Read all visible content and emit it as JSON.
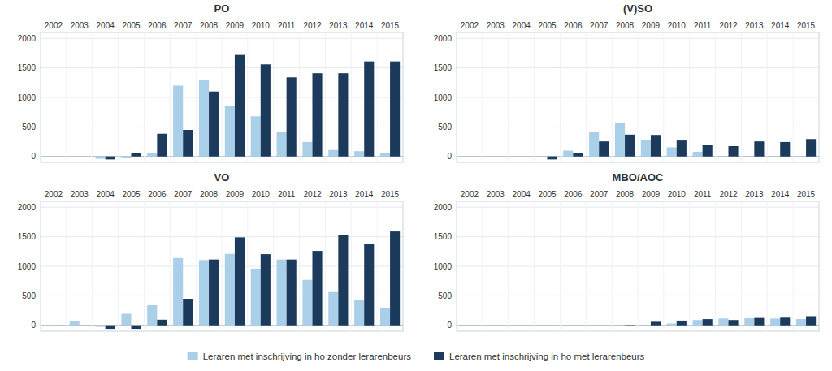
{
  "chart_data": [
    {
      "type": "bar",
      "title": "PO",
      "categories": [
        2002,
        2003,
        2004,
        2005,
        2006,
        2007,
        2008,
        2009,
        2010,
        2011,
        2012,
        2013,
        2014,
        2015
      ],
      "series": [
        {
          "name": "Leraren met inschrijving in ho zonder lerarenbeurs",
          "color": "#aacfe8",
          "values": [
            0,
            0,
            -40,
            -30,
            55,
            1200,
            1300,
            850,
            680,
            420,
            245,
            110,
            90,
            65
          ]
        },
        {
          "name": "Leraren met inschrijving in ho met lerarenbeurs",
          "color": "#1b3a5c",
          "values": [
            0,
            0,
            -50,
            65,
            385,
            450,
            1100,
            1720,
            1560,
            1340,
            1410,
            1410,
            1610,
            1610
          ]
        }
      ],
      "ylim": [
        -100,
        2100
      ],
      "yticks": [
        0,
        500,
        1000,
        1500,
        2000
      ],
      "grid": true,
      "legend": "bottom"
    },
    {
      "type": "bar",
      "title": "(V)SO",
      "categories": [
        2002,
        2003,
        2004,
        2005,
        2006,
        2007,
        2008,
        2009,
        2010,
        2011,
        2012,
        2013,
        2014,
        2015
      ],
      "series": [
        {
          "name": "Leraren met inschrijving in ho zonder lerarenbeurs",
          "color": "#aacfe8",
          "values": [
            0,
            0,
            0,
            0,
            100,
            420,
            560,
            280,
            155,
            80,
            0,
            0,
            0,
            0
          ]
        },
        {
          "name": "Leraren met inschrijving in ho met lerarenbeurs",
          "color": "#1b3a5c",
          "values": [
            0,
            0,
            0,
            -50,
            65,
            255,
            370,
            365,
            270,
            195,
            175,
            255,
            245,
            295
          ]
        }
      ],
      "ylim": [
        -100,
        2100
      ],
      "yticks": [
        0,
        500,
        1000,
        1500,
        2000
      ],
      "grid": true,
      "legend": "bottom"
    },
    {
      "type": "bar",
      "title": "VO",
      "categories": [
        2002,
        2003,
        2004,
        2005,
        2006,
        2007,
        2008,
        2009,
        2010,
        2011,
        2012,
        2013,
        2014,
        2015
      ],
      "series": [
        {
          "name": "Leraren met inschrijving in ho zonder lerarenbeurs",
          "color": "#aacfe8",
          "values": [
            -15,
            70,
            -25,
            195,
            340,
            1140,
            1105,
            1210,
            960,
            1115,
            770,
            565,
            425,
            300
          ]
        },
        {
          "name": "Leraren met inschrijving in ho met lerarenbeurs",
          "color": "#1b3a5c",
          "values": [
            0,
            0,
            -60,
            -60,
            95,
            450,
            1115,
            1490,
            1205,
            1115,
            1260,
            1530,
            1375,
            1590
          ]
        }
      ],
      "ylim": [
        -100,
        2100
      ],
      "yticks": [
        0,
        500,
        1000,
        1500,
        2000
      ],
      "grid": true,
      "legend": "bottom"
    },
    {
      "type": "bar",
      "title": "MBO/AOC",
      "categories": [
        2002,
        2003,
        2004,
        2005,
        2006,
        2007,
        2008,
        2009,
        2010,
        2011,
        2012,
        2013,
        2014,
        2015
      ],
      "series": [
        {
          "name": "Leraren met inschrijving in ho zonder lerarenbeurs",
          "color": "#aacfe8",
          "values": [
            0,
            0,
            0,
            0,
            0,
            0,
            0,
            0,
            30,
            90,
            115,
            120,
            115,
            105
          ]
        },
        {
          "name": "Leraren met inschrijving in ho met lerarenbeurs",
          "color": "#1b3a5c",
          "values": [
            0,
            0,
            0,
            0,
            0,
            0,
            5,
            60,
            80,
            105,
            90,
            125,
            130,
            155
          ]
        }
      ],
      "ylim": [
        -100,
        2100
      ],
      "yticks": [
        0,
        500,
        1000,
        1500,
        2000
      ],
      "grid": true,
      "legend": "bottom"
    }
  ]
}
